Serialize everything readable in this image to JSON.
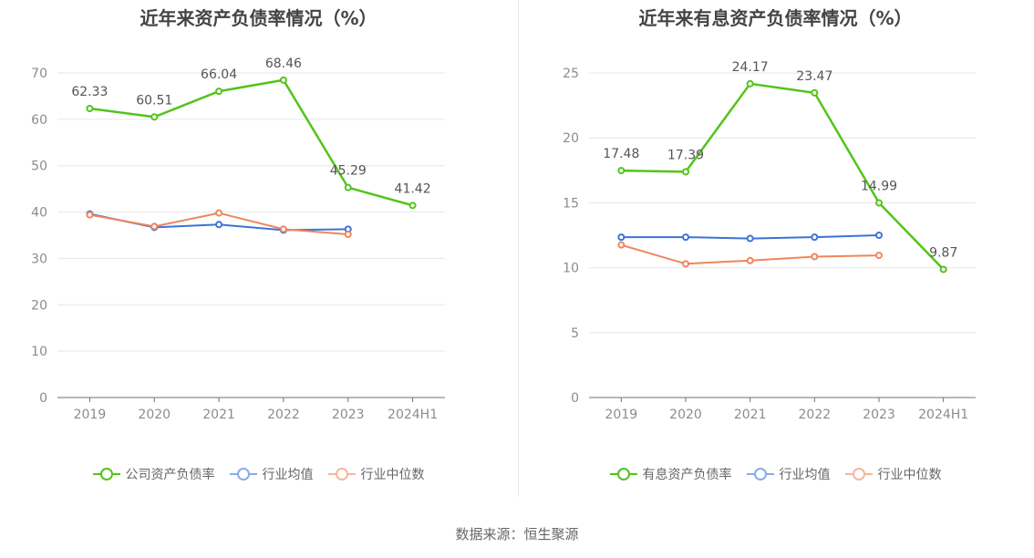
{
  "source_label": "数据来源：恒生聚源",
  "chart_data": [
    {
      "type": "line",
      "title": "近年来资产负债率情况（%）",
      "categories": [
        "2019",
        "2020",
        "2021",
        "2022",
        "2023",
        "2024H1"
      ],
      "ylim": [
        0,
        70
      ],
      "yticks": [
        0,
        10,
        20,
        30,
        40,
        50,
        60,
        70
      ],
      "series": [
        {
          "name": "公司资产负债率",
          "color": "#52c41a",
          "values": [
            62.33,
            60.51,
            66.04,
            68.46,
            45.29,
            41.42
          ],
          "labels": [
            "62.33",
            "60.51",
            "66.04",
            "68.46",
            "45.29",
            "41.42"
          ]
        },
        {
          "name": "行业均值",
          "color": "#3b73d8",
          "values": [
            39.6,
            36.7,
            37.3,
            36.1,
            36.3,
            null
          ]
        },
        {
          "name": "行业中位数",
          "color": "#f0855a",
          "values": [
            39.4,
            36.9,
            39.8,
            36.3,
            35.2,
            null
          ]
        }
      ]
    },
    {
      "type": "line",
      "title": "近年来有息资产负债率情况（%）",
      "categories": [
        "2019",
        "2020",
        "2021",
        "2022",
        "2023",
        "2024H1"
      ],
      "ylim": [
        0,
        25
      ],
      "yticks": [
        0,
        5,
        10,
        15,
        20,
        25
      ],
      "series": [
        {
          "name": "有息资产负债率",
          "color": "#52c41a",
          "values": [
            17.48,
            17.39,
            24.17,
            23.47,
            14.99,
            9.87
          ],
          "labels": [
            "17.48",
            "17.39",
            "24.17",
            "23.47",
            "14.99",
            "9.87"
          ]
        },
        {
          "name": "行业均值",
          "color": "#3b73d8",
          "values": [
            12.35,
            12.35,
            12.25,
            12.35,
            12.5,
            null
          ]
        },
        {
          "name": "行业中位数",
          "color": "#f0855a",
          "values": [
            11.75,
            10.3,
            10.55,
            10.85,
            10.95,
            null
          ]
        }
      ]
    }
  ]
}
